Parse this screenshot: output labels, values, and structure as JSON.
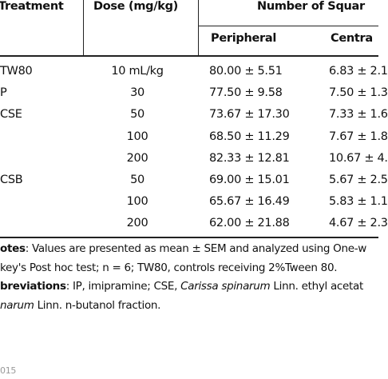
{
  "table": {
    "header": {
      "treatment": "Treatment",
      "dose": "Dose (mg/kg)",
      "group": "Number of Squar",
      "peripheral": "Peripheral",
      "central": "Centra"
    },
    "rows": [
      {
        "treatment": "TW80",
        "dose": "10 mL/kg",
        "peripheral": "80.00 ± 5.51",
        "central": "6.83 ± 2.1"
      },
      {
        "treatment": "P",
        "dose": "30",
        "peripheral": "77.50 ± 9.58",
        "central": "7.50 ± 1.3"
      },
      {
        "treatment": "CSE",
        "dose": "50",
        "peripheral": "73.67 ± 17.30",
        "central": "7.33 ± 1.6"
      },
      {
        "dose": "100",
        "peripheral": "68.50 ± 11.29",
        "central": "7.67 ± 1.8"
      },
      {
        "dose": "200",
        "peripheral": "82.33 ± 12.81",
        "central": "10.67 ± 4."
      },
      {
        "treatment": "CSB",
        "dose": "50",
        "peripheral": "69.00 ± 15.01",
        "central": "5.67 ± 2.5"
      },
      {
        "dose": "100",
        "peripheral": "65.67 ± 16.49",
        "central": "5.83 ± 1.1"
      },
      {
        "dose": "200",
        "peripheral": "62.00 ± 21.88",
        "central": "4.67 ± 2.3"
      }
    ]
  },
  "notes": [
    [
      {
        "text": "otes",
        "style": "bold"
      },
      {
        "text": ": Values are presented as mean ± SEM and analyzed using One-w"
      }
    ],
    [
      {
        "text": "key's Post hoc test; n = 6; TW80, controls receiving 2%Tween 80."
      }
    ],
    [
      {
        "text": "breviations",
        "style": "bold"
      },
      {
        "text": ": IP, imipramine; CSE, "
      },
      {
        "text": "Carissa spinarum",
        "style": "italic"
      },
      {
        "text": " Linn. ethyl acetat"
      }
    ],
    [
      {
        "text": "narum",
        "style": "italic"
      },
      {
        "text": " Linn. n-butanol fraction."
      }
    ]
  ],
  "footer": "015"
}
